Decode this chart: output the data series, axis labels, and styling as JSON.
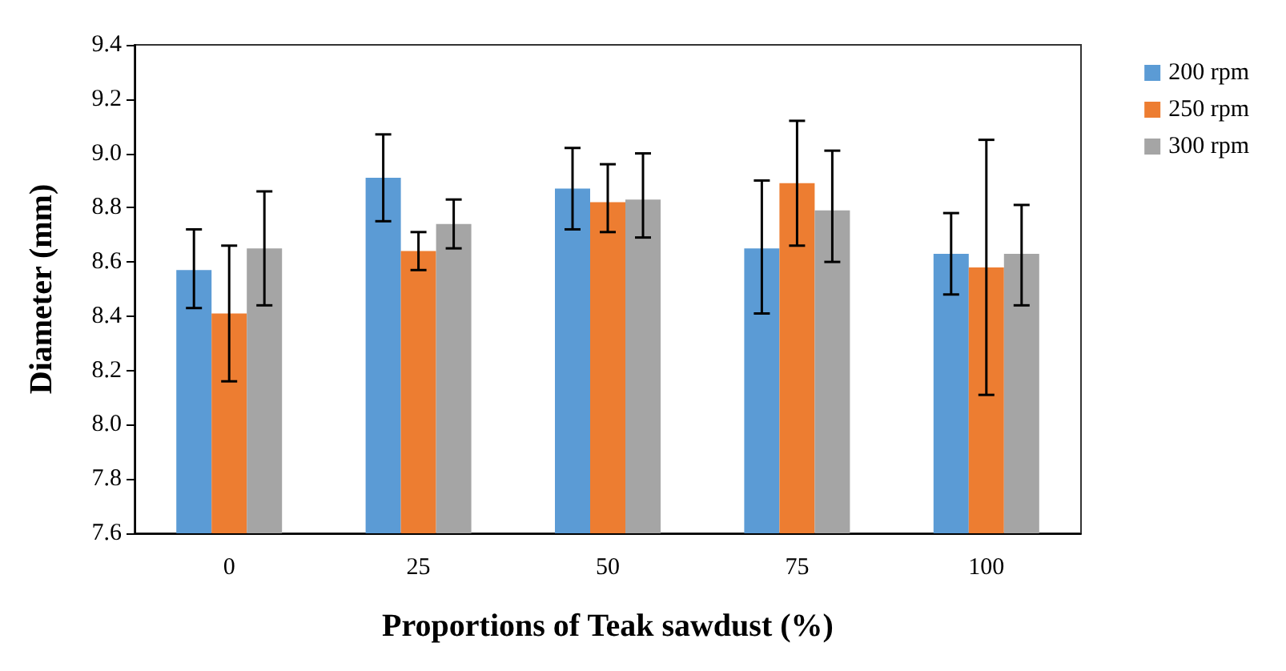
{
  "chart_data": {
    "type": "bar",
    "xlabel": "Proportions of Teak sawdust (%)",
    "ylabel": "Diameter (mm)",
    "categories": [
      "0",
      "25",
      "50",
      "75",
      "100"
    ],
    "series": [
      {
        "name": "200 rpm",
        "color": "#5b9bd5",
        "values": [
          8.57,
          8.91,
          8.87,
          8.65,
          8.63
        ],
        "errors": [
          [
            8.43,
            8.72
          ],
          [
            8.75,
            9.07
          ],
          [
            8.72,
            9.02
          ],
          [
            8.41,
            8.9
          ],
          [
            8.48,
            8.78
          ]
        ]
      },
      {
        "name": "250 rpm",
        "color": "#ed7d31",
        "values": [
          8.41,
          8.64,
          8.82,
          8.89,
          8.58
        ],
        "errors": [
          [
            8.16,
            8.66
          ],
          [
            8.57,
            8.71
          ],
          [
            8.71,
            8.96
          ],
          [
            8.66,
            9.12
          ],
          [
            8.11,
            9.05
          ]
        ]
      },
      {
        "name": "300 rpm",
        "color": "#a5a5a5",
        "values": [
          8.65,
          8.74,
          8.83,
          8.79,
          8.63
        ],
        "errors": [
          [
            8.44,
            8.86
          ],
          [
            8.65,
            8.83
          ],
          [
            8.69,
            9.0
          ],
          [
            8.6,
            9.01
          ],
          [
            8.44,
            8.81
          ]
        ]
      }
    ],
    "ylim": [
      7.6,
      9.4
    ],
    "yticks": [
      7.6,
      7.8,
      {
        "value": 8,
        "label": "8.0"
      },
      8.2,
      8.4,
      8.6,
      8.8,
      {
        "value": 9,
        "label": "9.0"
      },
      9.2,
      9.4
    ],
    "grid": false,
    "legend": "top right"
  }
}
